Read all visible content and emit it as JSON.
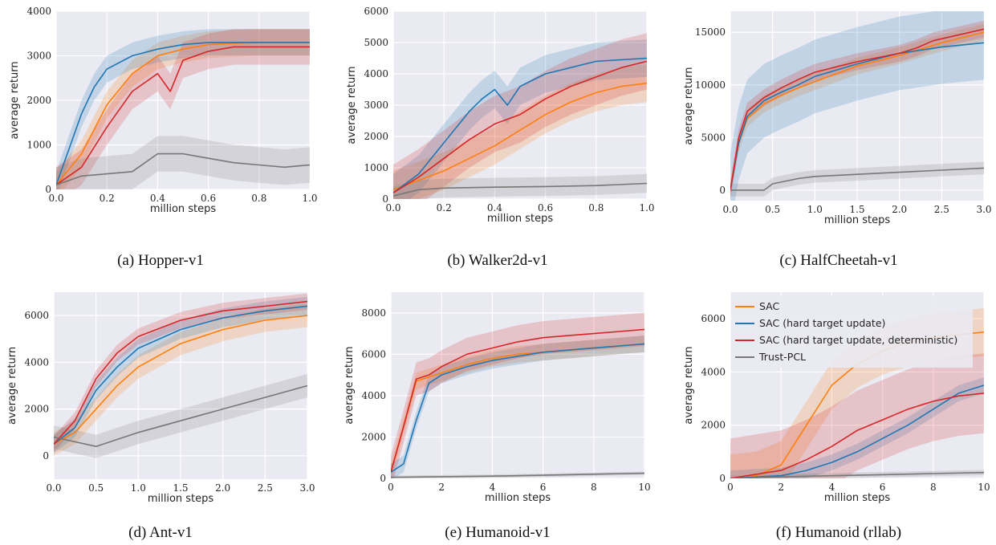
{
  "figure": {
    "colors": {
      "SAC": "#ff7f0e",
      "SAC (hard target update)": "#1f77b4",
      "SAC (hard target update, deterministic)": "#d62728",
      "Trust-PCL": "#777777"
    }
  },
  "chart_data": [
    {
      "type": "line",
      "caption": "(a) Hopper-v1",
      "xlabel": "million steps",
      "ylabel": "average return",
      "xlim": [
        0,
        1.0
      ],
      "ylim": [
        0,
        4000
      ],
      "xticks": [
        0.0,
        0.2,
        0.4,
        0.6,
        0.8,
        1.0
      ],
      "xticklabels": [
        "0.0",
        "0.2",
        "0.4",
        "0.6",
        "0.8",
        "1.0"
      ],
      "yticks": [
        0,
        1000,
        2000,
        3000,
        4000
      ],
      "yticklabels": [
        "0",
        "1000",
        "2000",
        "3000",
        "4000"
      ],
      "grid": true,
      "series": [
        {
          "name": "SAC",
          "band": 300,
          "x": [
            0,
            0.1,
            0.2,
            0.3,
            0.4,
            0.5,
            0.6,
            0.7,
            0.8,
            0.9,
            1.0
          ],
          "y": [
            100,
            800,
            1900,
            2600,
            3000,
            3150,
            3250,
            3280,
            3300,
            3300,
            3300
          ]
        },
        {
          "name": "SAC (hard target update)",
          "band": 300,
          "x": [
            0,
            0.05,
            0.1,
            0.15,
            0.2,
            0.3,
            0.4,
            0.5,
            0.6,
            0.7,
            0.8,
            0.9,
            1.0
          ],
          "y": [
            100,
            900,
            1700,
            2300,
            2700,
            3000,
            3150,
            3250,
            3300,
            3300,
            3300,
            3300,
            3300
          ]
        },
        {
          "name": "SAC (hard target update, deterministic)",
          "band": 400,
          "x": [
            0,
            0.1,
            0.2,
            0.3,
            0.4,
            0.45,
            0.5,
            0.6,
            0.7,
            0.8,
            0.9,
            1.0
          ],
          "y": [
            100,
            500,
            1400,
            2200,
            2600,
            2200,
            2900,
            3100,
            3200,
            3200,
            3200,
            3200
          ]
        },
        {
          "name": "Trust-PCL",
          "band": 400,
          "x": [
            0,
            0.1,
            0.2,
            0.3,
            0.4,
            0.5,
            0.6,
            0.7,
            0.8,
            0.9,
            1.0
          ],
          "y": [
            100,
            300,
            350,
            400,
            800,
            800,
            700,
            600,
            550,
            500,
            550
          ]
        }
      ]
    },
    {
      "type": "line",
      "caption": "(b) Walker2d-v1",
      "xlabel": "million steps",
      "ylabel": "average return",
      "xlim": [
        0,
        1.0
      ],
      "ylim": [
        0,
        6000
      ],
      "xticks": [
        0.0,
        0.2,
        0.4,
        0.6,
        0.8,
        1.0
      ],
      "xticklabels": [
        "0.0",
        "0.2",
        "0.4",
        "0.6",
        "0.8",
        "1.0"
      ],
      "yticks": [
        0,
        1000,
        2000,
        3000,
        4000,
        5000,
        6000
      ],
      "yticklabels": [
        "0",
        "1000",
        "2000",
        "3000",
        "4000",
        "5000",
        "6000"
      ],
      "grid": true,
      "series": [
        {
          "name": "SAC",
          "band": 600,
          "x": [
            0,
            0.1,
            0.2,
            0.3,
            0.4,
            0.5,
            0.6,
            0.7,
            0.8,
            0.9,
            1.0
          ],
          "y": [
            300,
            600,
            900,
            1300,
            1700,
            2200,
            2700,
            3100,
            3400,
            3600,
            3700
          ]
        },
        {
          "name": "SAC (hard target update)",
          "band": 600,
          "x": [
            0,
            0.1,
            0.2,
            0.3,
            0.35,
            0.4,
            0.45,
            0.5,
            0.6,
            0.7,
            0.8,
            0.9,
            1.0
          ],
          "y": [
            200,
            800,
            1800,
            2800,
            3200,
            3500,
            3000,
            3600,
            4000,
            4200,
            4400,
            4450,
            4500
          ]
        },
        {
          "name": "SAC (hard target update, deterministic)",
          "band": 900,
          "x": [
            0,
            0.1,
            0.2,
            0.3,
            0.4,
            0.5,
            0.6,
            0.7,
            0.8,
            0.9,
            1.0
          ],
          "y": [
            200,
            700,
            1300,
            1900,
            2400,
            2700,
            3200,
            3600,
            3900,
            4200,
            4400
          ]
        },
        {
          "name": "Trust-PCL",
          "band": 300,
          "x": [
            0,
            0.1,
            0.2,
            0.4,
            0.6,
            0.8,
            1.0
          ],
          "y": [
            100,
            300,
            350,
            380,
            400,
            430,
            500
          ]
        }
      ]
    },
    {
      "type": "line",
      "caption": "(c) HalfCheetah-v1",
      "xlabel": "million steps",
      "ylabel": "average return",
      "xlim": [
        0,
        3.0
      ],
      "ylim": [
        -1000,
        17000
      ],
      "xticks": [
        0.0,
        0.5,
        1.0,
        1.5,
        2.0,
        2.5,
        3.0
      ],
      "xticklabels": [
        "0.0",
        "0.5",
        "1.0",
        "1.5",
        "2.0",
        "2.5",
        "3.0"
      ],
      "yticks": [
        0,
        5000,
        10000,
        15000
      ],
      "yticklabels": [
        "0",
        "5000",
        "10000",
        "15000"
      ],
      "grid": true,
      "series": [
        {
          "name": "SAC",
          "band": 800,
          "x": [
            0,
            0.1,
            0.2,
            0.4,
            0.6,
            0.8,
            1.0,
            1.5,
            2.0,
            2.5,
            3.0
          ],
          "y": [
            0,
            4500,
            6800,
            8200,
            9000,
            9700,
            10300,
            11800,
            12800,
            14000,
            15000
          ]
        },
        {
          "name": "SAC (hard target update)",
          "band": 3500,
          "x": [
            0,
            0.1,
            0.2,
            0.4,
            0.6,
            0.8,
            1.0,
            1.5,
            2.0,
            2.5,
            3.0
          ],
          "y": [
            0,
            4500,
            7000,
            8500,
            9300,
            10000,
            10800,
            12000,
            13000,
            13600,
            14000
          ]
        },
        {
          "name": "SAC (hard target update, deterministic)",
          "band": 800,
          "x": [
            0,
            0.1,
            0.2,
            0.4,
            0.6,
            0.8,
            1.0,
            1.5,
            2.0,
            2.2,
            2.4,
            3.0
          ],
          "y": [
            0,
            5000,
            7500,
            8800,
            9700,
            10500,
            11200,
            12200,
            13000,
            13500,
            14200,
            15300
          ]
        },
        {
          "name": "Trust-PCL",
          "band": 600,
          "x": [
            0,
            0.4,
            0.5,
            0.8,
            1.0,
            1.5,
            2.0,
            2.5,
            3.0
          ],
          "y": [
            0,
            0,
            600,
            1100,
            1300,
            1500,
            1700,
            1900,
            2100
          ]
        }
      ]
    },
    {
      "type": "line",
      "caption": "(d) Ant-v1",
      "xlabel": "million steps",
      "ylabel": "average return",
      "xlim": [
        0,
        3.0
      ],
      "ylim": [
        -1000,
        7000
      ],
      "xticks": [
        0.0,
        0.5,
        1.0,
        1.5,
        2.0,
        2.5,
        3.0
      ],
      "xticklabels": [
        "0.0",
        "0.5",
        "1.0",
        "1.5",
        "2.0",
        "2.5",
        "3.0"
      ],
      "yticks": [
        0,
        2000,
        4000,
        6000
      ],
      "yticklabels": [
        "0",
        "2000",
        "4000",
        "6000"
      ],
      "grid": true,
      "series": [
        {
          "name": "SAC",
          "band": 500,
          "x": [
            0,
            0.25,
            0.5,
            0.75,
            1.0,
            1.5,
            2.0,
            2.5,
            3.0
          ],
          "y": [
            500,
            1000,
            2000,
            3000,
            3800,
            4800,
            5400,
            5800,
            6000
          ]
        },
        {
          "name": "SAC (hard target update)",
          "band": 400,
          "x": [
            0,
            0.25,
            0.5,
            0.75,
            1.0,
            1.5,
            2.0,
            2.5,
            3.0
          ],
          "y": [
            500,
            1200,
            2800,
            3800,
            4600,
            5400,
            5900,
            6200,
            6400
          ]
        },
        {
          "name": "SAC (hard target update, deterministic)",
          "band": 350,
          "x": [
            0,
            0.25,
            0.5,
            0.75,
            1.0,
            1.5,
            2.0,
            2.5,
            3.0
          ],
          "y": [
            500,
            1500,
            3300,
            4400,
            5100,
            5800,
            6200,
            6400,
            6600
          ]
        },
        {
          "name": "Trust-PCL",
          "band": 500,
          "x": [
            0,
            0.25,
            0.5,
            0.75,
            1.0,
            1.5,
            2.0,
            2.5,
            3.0
          ],
          "y": [
            800,
            600,
            400,
            700,
            1000,
            1500,
            2000,
            2500,
            3000
          ]
        }
      ]
    },
    {
      "type": "line",
      "caption": "(e) Humanoid-v1",
      "xlabel": "million steps",
      "ylabel": "average return",
      "xlim": [
        0,
        10
      ],
      "ylim": [
        0,
        9000
      ],
      "xticks": [
        0,
        2,
        4,
        6,
        8,
        10
      ],
      "xticklabels": [
        "0",
        "2",
        "4",
        "6",
        "8",
        "10"
      ],
      "yticks": [
        0,
        2000,
        4000,
        6000,
        8000
      ],
      "yticklabels": [
        "0",
        "2000",
        "4000",
        "6000",
        "8000"
      ],
      "grid": true,
      "series": [
        {
          "name": "SAC",
          "band": 400,
          "x": [
            0,
            0.5,
            1.0,
            1.5,
            2,
            3,
            4,
            5,
            6,
            7,
            8,
            9,
            10
          ],
          "y": [
            300,
            2500,
            4700,
            4900,
            5100,
            5500,
            5800,
            6000,
            6100,
            6200,
            6300,
            6400,
            6500
          ]
        },
        {
          "name": "SAC (hard target update)",
          "band": 400,
          "x": [
            0,
            0.5,
            1.0,
            1.5,
            2,
            3,
            4,
            5,
            6,
            7,
            8,
            9,
            10
          ],
          "y": [
            300,
            700,
            2800,
            4600,
            5000,
            5400,
            5700,
            5900,
            6100,
            6200,
            6300,
            6400,
            6500
          ]
        },
        {
          "name": "SAC (hard target update, deterministic)",
          "band": 800,
          "x": [
            0,
            0.5,
            1.0,
            1.5,
            2,
            3,
            4,
            5,
            6,
            7,
            8,
            9,
            10
          ],
          "y": [
            300,
            2500,
            4800,
            5000,
            5400,
            6000,
            6300,
            6600,
            6800,
            6900,
            7000,
            7100,
            7200
          ]
        },
        {
          "name": "Trust-PCL",
          "band": 80,
          "x": [
            0,
            2,
            4,
            6,
            8,
            10
          ],
          "y": [
            50,
            80,
            110,
            150,
            200,
            250
          ]
        }
      ]
    },
    {
      "type": "line",
      "caption": "(f) Humanoid (rllab)",
      "xlabel": "million steps",
      "ylabel": "average return",
      "xlim": [
        0,
        10
      ],
      "ylim": [
        0,
        7000
      ],
      "xticks": [
        0,
        2,
        4,
        6,
        8,
        10
      ],
      "xticklabels": [
        "0",
        "2",
        "4",
        "6",
        "8",
        "10"
      ],
      "yticks": [
        0,
        2000,
        4000,
        6000
      ],
      "yticklabels": [
        "0",
        "2000",
        "4000",
        "6000"
      ],
      "grid": true,
      "legend": "top-left",
      "series": [
        {
          "name": "SAC",
          "band": 900,
          "x": [
            0,
            1,
            2,
            3,
            4,
            5,
            6,
            7,
            8,
            9,
            10
          ],
          "y": [
            0,
            100,
            500,
            2000,
            3500,
            4300,
            4800,
            5100,
            5300,
            5400,
            5500
          ]
        },
        {
          "name": "SAC (hard target update)",
          "band": 300,
          "x": [
            0,
            1,
            2,
            3,
            4,
            5,
            6,
            7,
            8,
            9,
            10
          ],
          "y": [
            0,
            50,
            100,
            300,
            600,
            1000,
            1500,
            2000,
            2600,
            3200,
            3500
          ]
        },
        {
          "name": "SAC (hard target update, deterministic)",
          "band": 1500,
          "x": [
            0,
            1,
            2,
            3,
            4,
            5,
            6,
            7,
            8,
            9,
            10
          ],
          "y": [
            0,
            150,
            300,
            700,
            1200,
            1800,
            2200,
            2600,
            2900,
            3100,
            3200
          ]
        },
        {
          "name": "Trust-PCL",
          "band": 100,
          "x": [
            0,
            2,
            4,
            6,
            8,
            10
          ],
          "y": [
            0,
            60,
            100,
            140,
            180,
            220
          ]
        }
      ]
    }
  ]
}
